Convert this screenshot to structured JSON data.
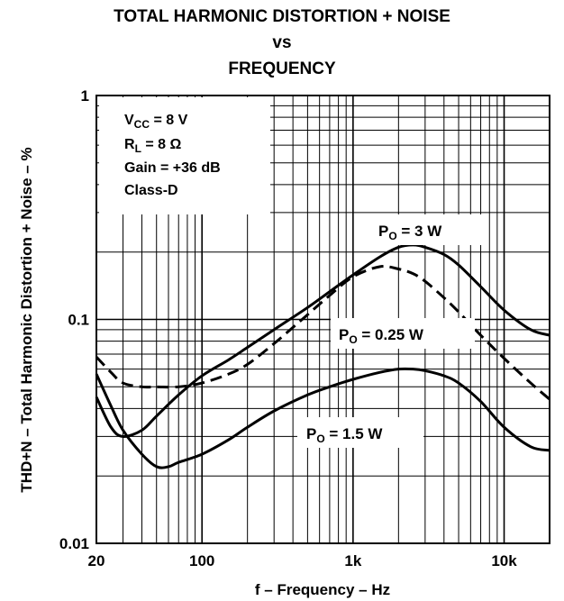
{
  "chart_data": {
    "type": "line",
    "title_lines": [
      "TOTAL HARMONIC DISTORTION + NOISE",
      "vs",
      "FREQUENCY"
    ],
    "xlabel": "f – Frequency – Hz",
    "ylabel": "THD+N – Total Harmonic Distortion + Noise – %",
    "x_scale": "log",
    "y_scale": "log",
    "xlim": [
      20,
      20000
    ],
    "ylim": [
      0.01,
      1
    ],
    "x_ticks": [
      {
        "value": 20,
        "label": "20"
      },
      {
        "value": 100,
        "label": "100"
      },
      {
        "value": 1000,
        "label": "1k"
      },
      {
        "value": 10000,
        "label": "10k"
      }
    ],
    "y_ticks": [
      {
        "value": 1,
        "label": "1"
      },
      {
        "value": 0.1,
        "label": "0.1"
      },
      {
        "value": 0.01,
        "label": "0.01"
      }
    ],
    "grid": true,
    "conditions": {
      "vcc": {
        "prefix": "V",
        "sub": "CC",
        "suffix": " = 8 V"
      },
      "rl": {
        "prefix": "R",
        "sub": "L",
        "suffix": " = 8 Ω"
      },
      "gain": "Gain = +36 dB",
      "mode": "Class-D"
    },
    "series": [
      {
        "label": {
          "prefix": "P",
          "sub": "O",
          "suffix": " = 3 W"
        },
        "style": "solid",
        "x": [
          20,
          25,
          30,
          40,
          50,
          70,
          100,
          150,
          200,
          300,
          500,
          700,
          1000,
          1500,
          2000,
          2500,
          3000,
          4000,
          5000,
          7000,
          10000,
          15000,
          20000
        ],
        "y": [
          0.045,
          0.033,
          0.03,
          0.032,
          0.037,
          0.046,
          0.056,
          0.066,
          0.075,
          0.09,
          0.113,
          0.133,
          0.158,
          0.19,
          0.21,
          0.215,
          0.21,
          0.195,
          0.175,
          0.14,
          0.11,
          0.09,
          0.085
        ]
      },
      {
        "label": {
          "prefix": "P",
          "sub": "O",
          "suffix": " = 0.25 W"
        },
        "style": "dashed",
        "x": [
          20,
          25,
          30,
          40,
          50,
          70,
          100,
          150,
          200,
          300,
          500,
          700,
          1000,
          1500,
          2000,
          2500,
          3000,
          4000,
          5000,
          7000,
          10000,
          15000,
          20000
        ],
        "y": [
          0.068,
          0.058,
          0.052,
          0.05,
          0.05,
          0.05,
          0.052,
          0.057,
          0.063,
          0.078,
          0.105,
          0.128,
          0.155,
          0.172,
          0.168,
          0.16,
          0.148,
          0.125,
          0.108,
          0.085,
          0.067,
          0.052,
          0.044
        ]
      },
      {
        "label": {
          "prefix": "P",
          "sub": "O",
          "suffix": " = 1.5 W"
        },
        "style": "solid",
        "x": [
          20,
          25,
          30,
          40,
          50,
          60,
          70,
          100,
          150,
          200,
          300,
          500,
          700,
          1000,
          1500,
          2000,
          2500,
          3000,
          4000,
          5000,
          7000,
          10000,
          15000,
          20000
        ],
        "y": [
          0.057,
          0.041,
          0.032,
          0.025,
          0.022,
          0.022,
          0.023,
          0.025,
          0.029,
          0.033,
          0.039,
          0.046,
          0.05,
          0.054,
          0.058,
          0.06,
          0.06,
          0.059,
          0.056,
          0.052,
          0.043,
          0.033,
          0.027,
          0.026
        ]
      }
    ]
  }
}
